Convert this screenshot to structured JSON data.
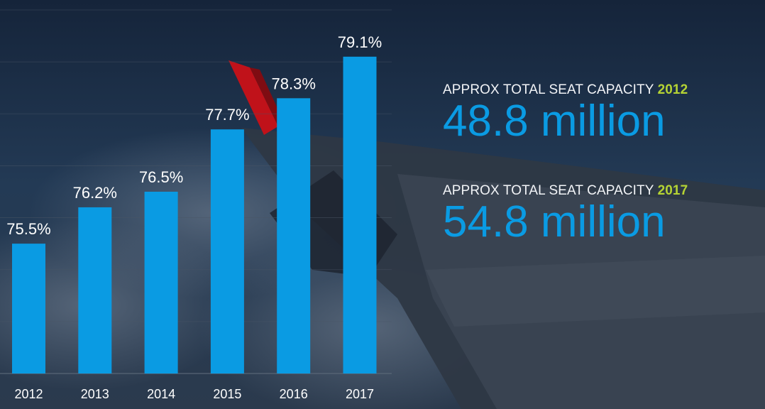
{
  "colors": {
    "bar": "#0a9be3",
    "highlight": "#b5d334",
    "text": "#ffffff",
    "stat_value": "#0a9be3"
  },
  "chart_data": {
    "type": "bar",
    "categories": [
      "2012",
      "2013",
      "2014",
      "2015",
      "2016",
      "2017"
    ],
    "values": [
      75.5,
      76.2,
      76.5,
      77.7,
      78.3,
      79.1
    ],
    "data_labels": [
      "75.5%",
      "76.2%",
      "76.5%",
      "77.7%",
      "78.3%",
      "79.1%"
    ],
    "title": "",
    "xlabel": "",
    "ylabel": "",
    "ylim": [
      73,
      80
    ],
    "grid": true,
    "legend": "none"
  },
  "stats": [
    {
      "label": "APPROX TOTAL SEAT CAPACITY",
      "year": "2012",
      "value": "48.8 million"
    },
    {
      "label": "APPROX TOTAL SEAT CAPACITY",
      "year": "2017",
      "value": "54.8 million"
    }
  ]
}
